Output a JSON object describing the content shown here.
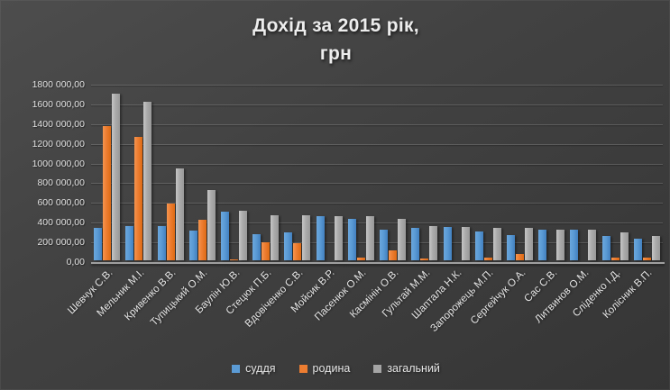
{
  "title": {
    "line1": "Дохід за 2015 рік,",
    "line2": "грн"
  },
  "y_axis": {
    "tick_labels": [
      "1800 000,00",
      "1600 000,00",
      "1400 000,00",
      "1200 000,00",
      "1000 000,00",
      "800 000,00",
      "600 000,00",
      "400 000,00",
      "200 000,00",
      "0,00"
    ]
  },
  "chart_data": {
    "type": "bar",
    "title": "Дохід за 2015 рік, грн",
    "categories": [
      "Шевчук С.В.",
      "Мельник М.І.",
      "Кривенко В.В.",
      "Тупицький О.М.",
      "Баулін Ю.В.",
      "Стецюк П.Б.",
      "Вдовіченко С.В.",
      "Мойсик В.Р.",
      "Пасенюк О.М.",
      "Касмінін О.В.",
      "Гультай М.М.",
      "Шаптала Н.К.",
      "Запорожець М.П.",
      "Сергейчук О.А.",
      "Сас С.В.",
      "Литвинов О.М.",
      "Сліденко І.Д.",
      "Колісник В.П."
    ],
    "series": [
      {
        "name": "суддя",
        "color": "#5b9bd5",
        "values": [
          330000,
          350000,
          350000,
          300000,
          495000,
          265000,
          280000,
          450000,
          420000,
          315000,
          330000,
          340000,
          290000,
          260000,
          310000,
          310000,
          250000,
          220000
        ]
      },
      {
        "name": "родина",
        "color": "#ed7d31",
        "values": [
          1360000,
          1250000,
          580000,
          410000,
          12000,
          180000,
          175000,
          0,
          30000,
          100000,
          20000,
          0,
          30000,
          60000,
          0,
          0,
          30000,
          25000
        ]
      },
      {
        "name": "загальний",
        "color": "#a5a5a5",
        "values": [
          1690000,
          1610000,
          930000,
          710000,
          507000,
          455000,
          455000,
          450000,
          450000,
          420000,
          350000,
          340000,
          330000,
          325000,
          315000,
          310000,
          280000,
          245000
        ]
      }
    ],
    "ylabel": "",
    "xlabel": "",
    "ylim": [
      0,
      1800000
    ],
    "ystep": 200000,
    "grid": true,
    "legend_position": "bottom"
  }
}
